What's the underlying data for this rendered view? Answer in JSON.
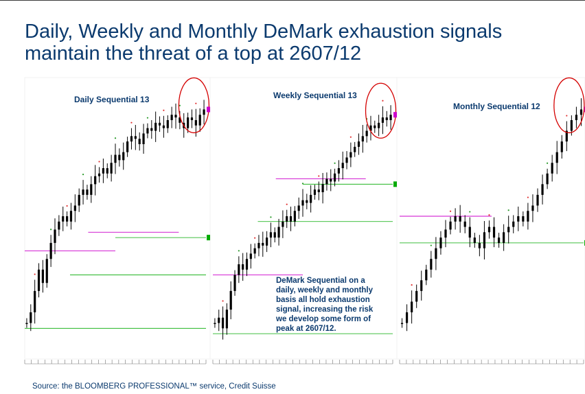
{
  "title": {
    "line1": "Daily, Weekly and Monthly DeMark exhaustion signals",
    "line2": "maintain the threat of a top at 2607/12"
  },
  "source": "Source: the BLOOMBERG PROFESSIONAL™ service, Credit Suisse",
  "annotation": {
    "lines": [
      "DeMark Sequential on a",
      "daily, weekly and monthly",
      "basis all hold exhaustion",
      "signal, increasing the risk",
      "we develop some form of",
      "peak at 2607/12."
    ]
  },
  "colors": {
    "title": "#0b3a6e",
    "candles": "#000000",
    "signal_circle": "#d40000",
    "tdst_magenta": "#cc00cc",
    "tdst_green": "#00aa00",
    "count_red": "#e03030",
    "count_green": "#2a9a2a"
  },
  "chart_data": [
    {
      "type": "candlestick",
      "title": "Daily Sequential 13",
      "price_path": [
        40,
        44,
        52,
        60,
        55,
        64,
        70,
        75,
        78,
        80,
        78,
        82,
        84,
        88,
        90,
        88,
        92,
        95,
        96,
        98,
        96,
        100,
        103,
        101,
        104,
        108,
        110,
        109,
        107,
        111,
        113,
        112,
        115,
        114,
        113,
        116,
        118,
        117,
        115,
        113,
        117,
        116,
        114,
        118,
        120
      ],
      "ylim": [
        35,
        125
      ],
      "signal": "circled at top",
      "tdst_resistance_levels": [
        67,
        74
      ],
      "tdst_support_levels": [
        38,
        58,
        72
      ],
      "icons": [
        "signal-circle"
      ]
    },
    {
      "type": "candlestick",
      "title": "Weekly Sequential 13",
      "price_path": [
        40,
        42,
        38,
        45,
        52,
        58,
        62,
        60,
        64,
        66,
        68,
        70,
        69,
        72,
        74,
        72,
        76,
        78,
        80,
        78,
        82,
        84,
        86,
        85,
        88,
        90,
        89,
        92,
        94,
        93,
        96,
        98,
        100,
        102,
        104,
        106,
        108,
        110,
        112,
        114,
        113,
        115,
        117,
        116,
        118
      ],
      "ylim": [
        35,
        125
      ],
      "signal": "circled at top",
      "tdst_resistance_levels": [
        58,
        94
      ],
      "tdst_support_levels": [
        36,
        78,
        92
      ],
      "icons": [
        "signal-circle"
      ]
    },
    {
      "type": "candlestick",
      "title": "Monthly Sequential 12",
      "price_path": [
        40,
        44,
        48,
        52,
        56,
        60,
        64,
        68,
        72,
        75,
        78,
        80,
        78,
        76,
        72,
        70,
        68,
        74,
        76,
        72,
        70,
        74,
        76,
        78,
        80,
        78,
        82,
        84,
        88,
        92,
        96,
        100,
        104,
        108,
        112,
        116,
        118,
        120
      ],
      "ylim": [
        35,
        125
      ],
      "signal": "circled at top",
      "tdst_resistance_levels": [
        80
      ],
      "tdst_support_levels": [
        70
      ],
      "icons": [
        "signal-circle"
      ]
    }
  ]
}
